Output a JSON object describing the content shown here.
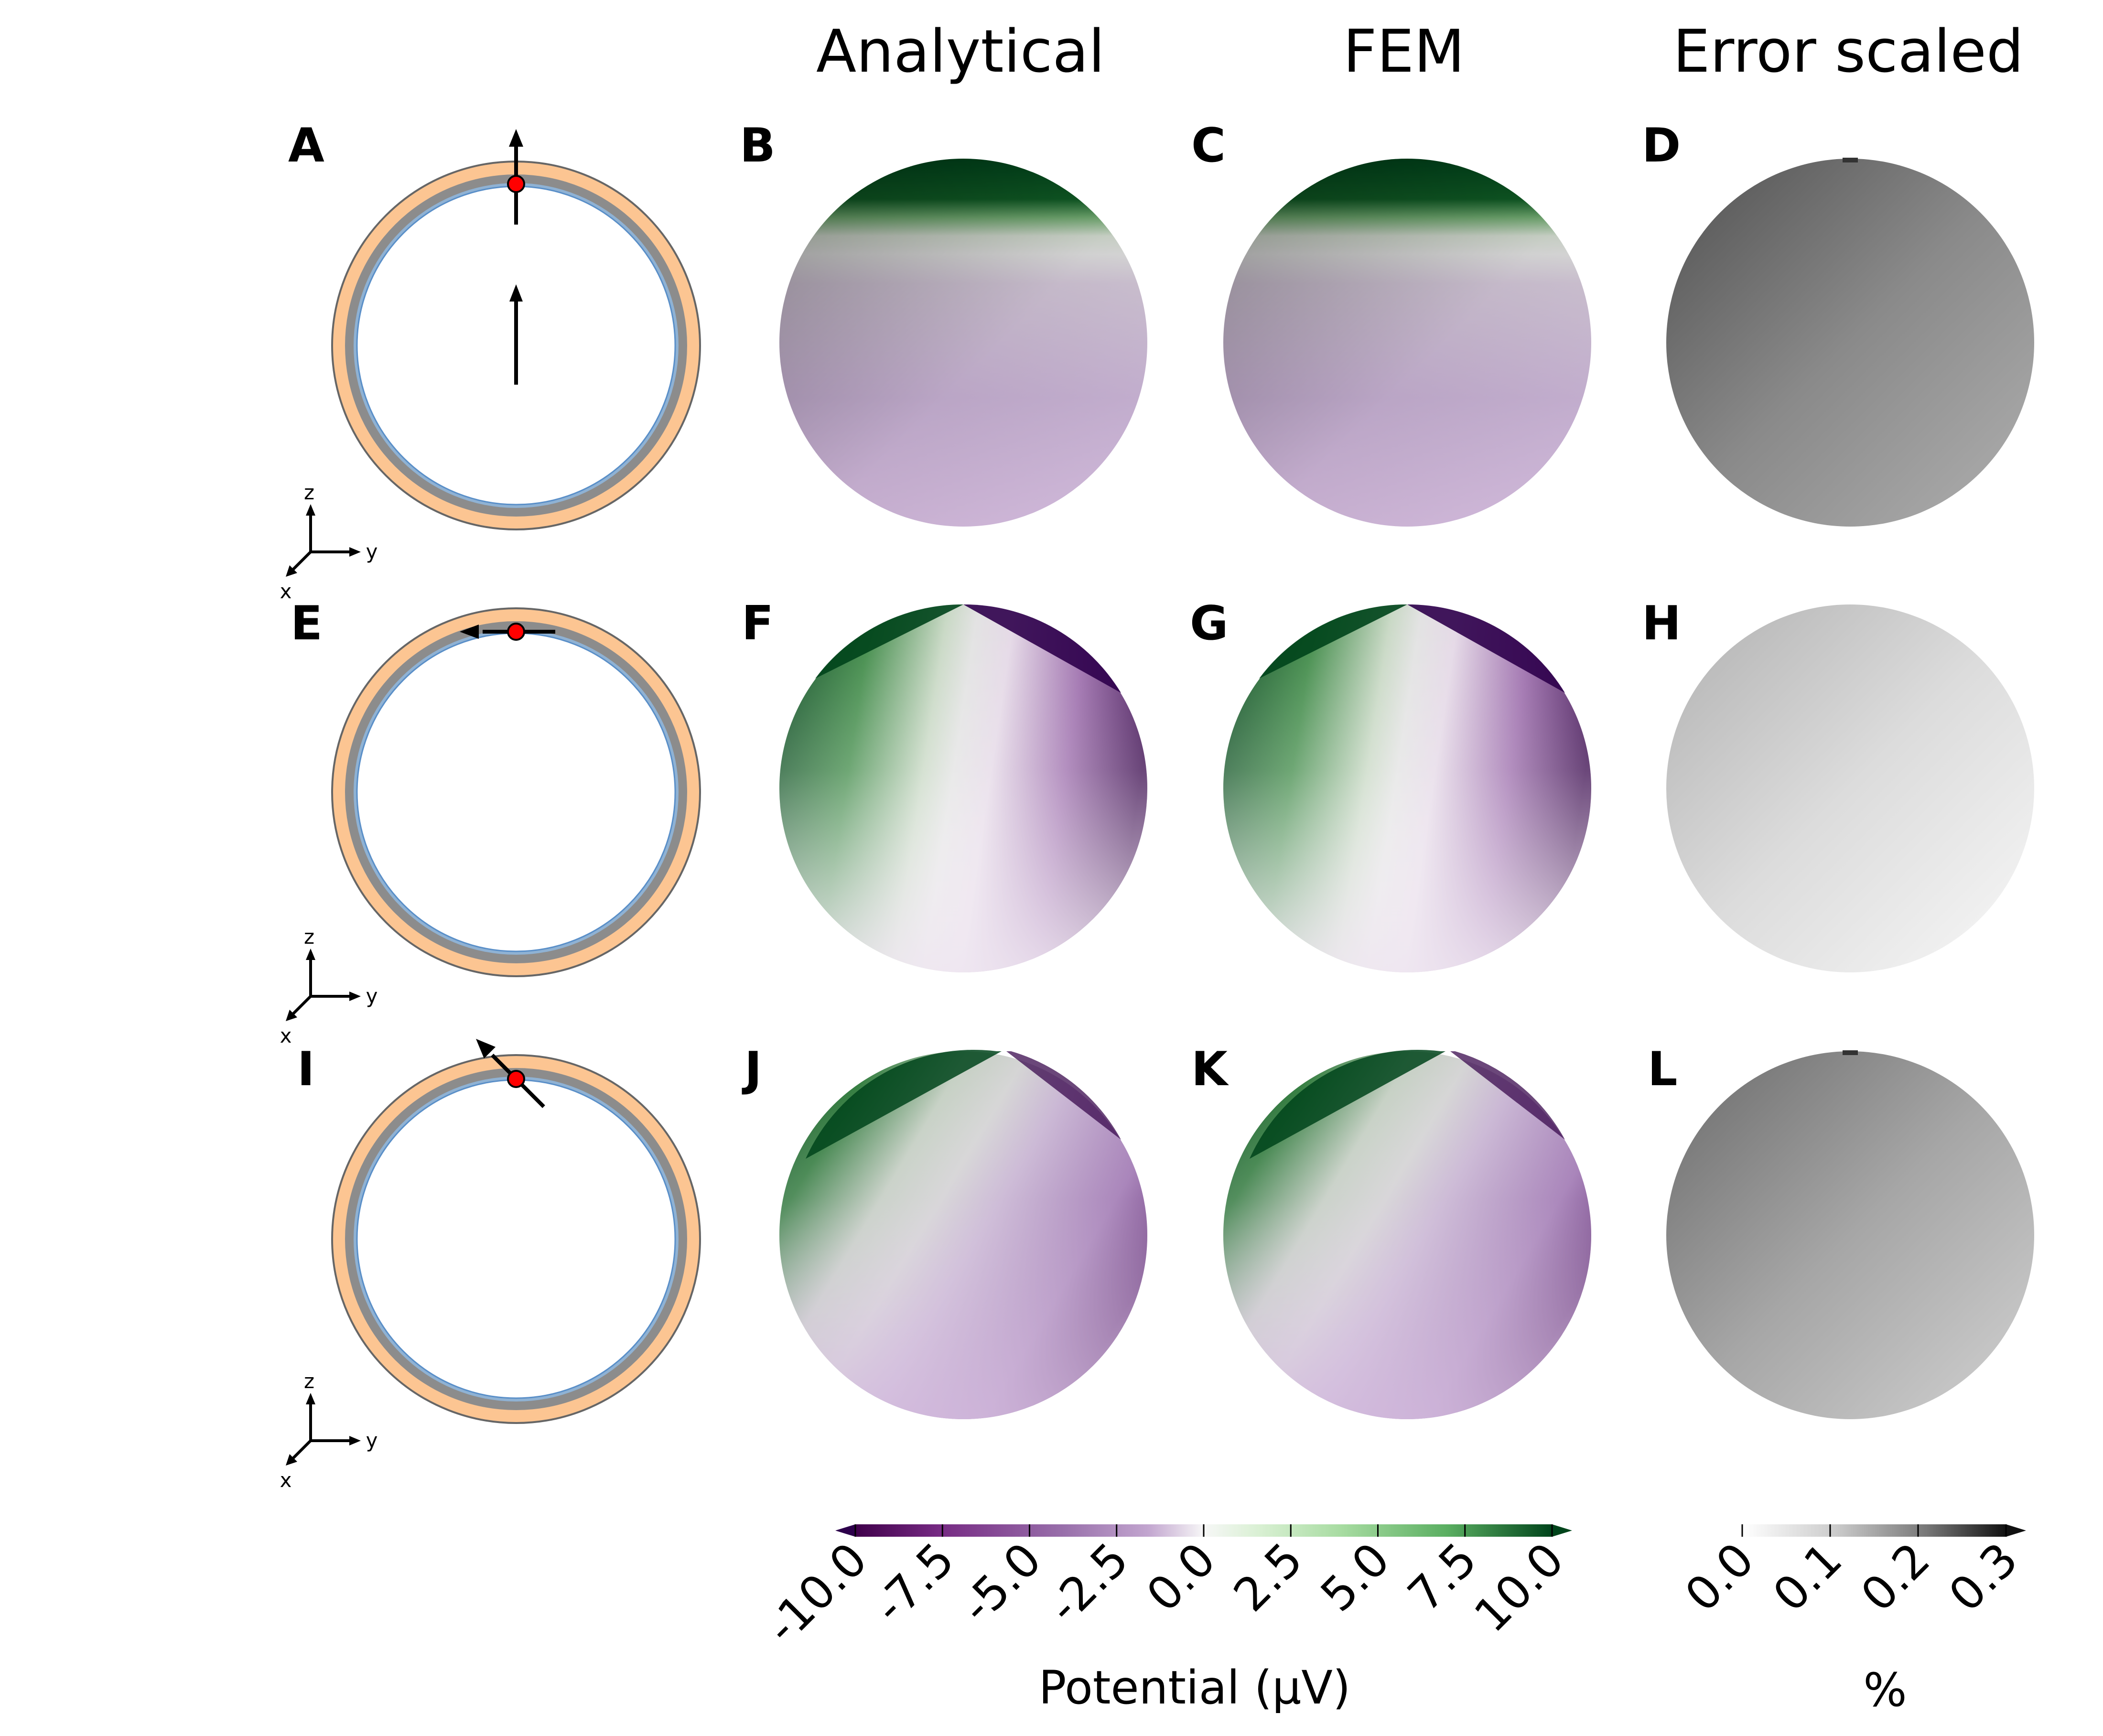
{
  "columns": {
    "analytical": "Analytical",
    "fem": "FEM",
    "error": "Error scaled"
  },
  "panels": [
    "A",
    "B",
    "C",
    "D",
    "E",
    "F",
    "G",
    "H",
    "I",
    "J",
    "K",
    "L"
  ],
  "axes": {
    "z": "z",
    "y": "y",
    "x": "x"
  },
  "colors": {
    "scalp": "#fcc592",
    "skull": "#888888",
    "csf": "#8fb2d4",
    "dipole": "#ff0000",
    "purple_dark": "#2d004b",
    "green_dark": "#00441b"
  },
  "rows": [
    {
      "dipole_orientation": "radial (+z)"
    },
    {
      "dipole_orientation": "tangential (-y)"
    },
    {
      "dipole_orientation": "oblique (45°)"
    }
  ],
  "colorbar_potential": {
    "label": "Potential (μV)",
    "ticks": [
      "-10.0",
      "-7.5",
      "-5.0",
      "-2.5",
      "0.0",
      "2.5",
      "5.0",
      "7.5",
      "10.0"
    ],
    "range": [
      -10,
      10
    ],
    "colormap": "PRGn",
    "extend": "both"
  },
  "colorbar_error": {
    "label": "%",
    "ticks": [
      "0.0",
      "0.1",
      "0.2",
      "0.3"
    ],
    "range": [
      0,
      0.3
    ],
    "colormap": "Greys",
    "extend": "max"
  }
}
